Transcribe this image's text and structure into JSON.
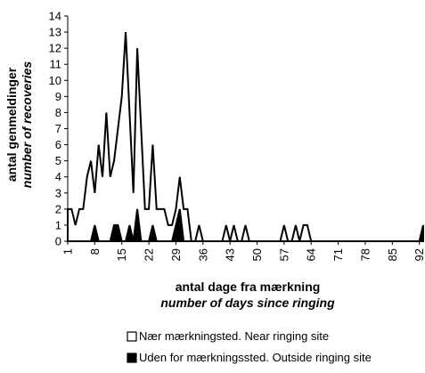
{
  "chart_data": {
    "type": "area",
    "x_label": "antal dage fra mærkning",
    "x_label_2": "number of days since ringing",
    "y_label": "antal genmeldinger",
    "y_label_2": "number of recoveries",
    "x": [
      1,
      2,
      3,
      4,
      5,
      6,
      7,
      8,
      9,
      10,
      11,
      12,
      13,
      14,
      15,
      16,
      17,
      18,
      19,
      20,
      21,
      22,
      23,
      24,
      25,
      26,
      27,
      28,
      29,
      30,
      31,
      32,
      33,
      34,
      35,
      36,
      37,
      38,
      39,
      40,
      41,
      42,
      43,
      44,
      45,
      46,
      47,
      48,
      49,
      50,
      51,
      52,
      53,
      54,
      55,
      56,
      57,
      58,
      59,
      60,
      61,
      62,
      63,
      64,
      65,
      66,
      67,
      68,
      69,
      70,
      71,
      72,
      73,
      74,
      75,
      76,
      77,
      78,
      79,
      80,
      81,
      82,
      83,
      84,
      85,
      86,
      87,
      88,
      89,
      90,
      91,
      92,
      93
    ],
    "series": [
      {
        "name": "Nær mærkningsted. Near ringing site",
        "color": "#ffffff",
        "values": [
          2,
          2,
          1,
          2,
          2,
          4,
          5,
          3,
          6,
          4,
          8,
          4,
          5,
          7,
          9,
          13,
          8,
          3,
          12,
          7,
          2,
          2,
          6,
          2,
          2,
          2,
          1,
          1,
          2,
          4,
          2,
          2,
          0,
          0,
          1,
          0,
          0,
          0,
          0,
          0,
          0,
          1,
          0,
          1,
          0,
          0,
          1,
          0,
          0,
          0,
          0,
          0,
          0,
          0,
          0,
          0,
          1,
          0,
          0,
          1,
          0,
          1,
          1,
          0,
          0,
          0,
          0,
          0,
          0,
          0,
          0,
          0,
          0,
          0,
          0,
          0,
          0,
          0,
          0,
          0,
          0,
          0,
          0,
          0,
          0,
          0,
          0,
          0,
          0,
          0,
          0,
          0,
          0
        ]
      },
      {
        "name": "Uden for mærkningssted. Outside ringing site",
        "color": "#000000",
        "values": [
          0,
          0,
          0,
          0,
          0,
          0,
          0,
          1,
          0,
          0,
          0,
          0,
          1,
          1,
          0,
          0,
          1,
          0,
          2,
          0,
          0,
          0,
          1,
          0,
          0,
          0,
          0,
          0,
          1,
          2,
          0,
          0,
          0,
          0,
          0,
          0,
          0,
          0,
          0,
          0,
          0,
          0,
          0,
          0,
          0,
          0,
          0,
          0,
          0,
          0,
          0,
          0,
          0,
          0,
          0,
          0,
          0,
          0,
          0,
          0,
          0,
          0,
          0,
          0,
          0,
          0,
          0,
          0,
          0,
          0,
          0,
          0,
          0,
          0,
          0,
          0,
          0,
          0,
          0,
          0,
          0,
          0,
          0,
          0,
          0,
          0,
          0,
          0,
          0,
          0,
          0,
          0,
          1
        ]
      }
    ],
    "xlim": [
      1,
      93
    ],
    "xticks": [
      1,
      8,
      15,
      22,
      29,
      36,
      43,
      50,
      57,
      64,
      71,
      78,
      85,
      92
    ],
    "ylim": [
      0,
      14
    ],
    "yticks": [
      0,
      1,
      2,
      3,
      4,
      5,
      6,
      7,
      8,
      9,
      10,
      11,
      12,
      13,
      14
    ],
    "grid": false
  }
}
